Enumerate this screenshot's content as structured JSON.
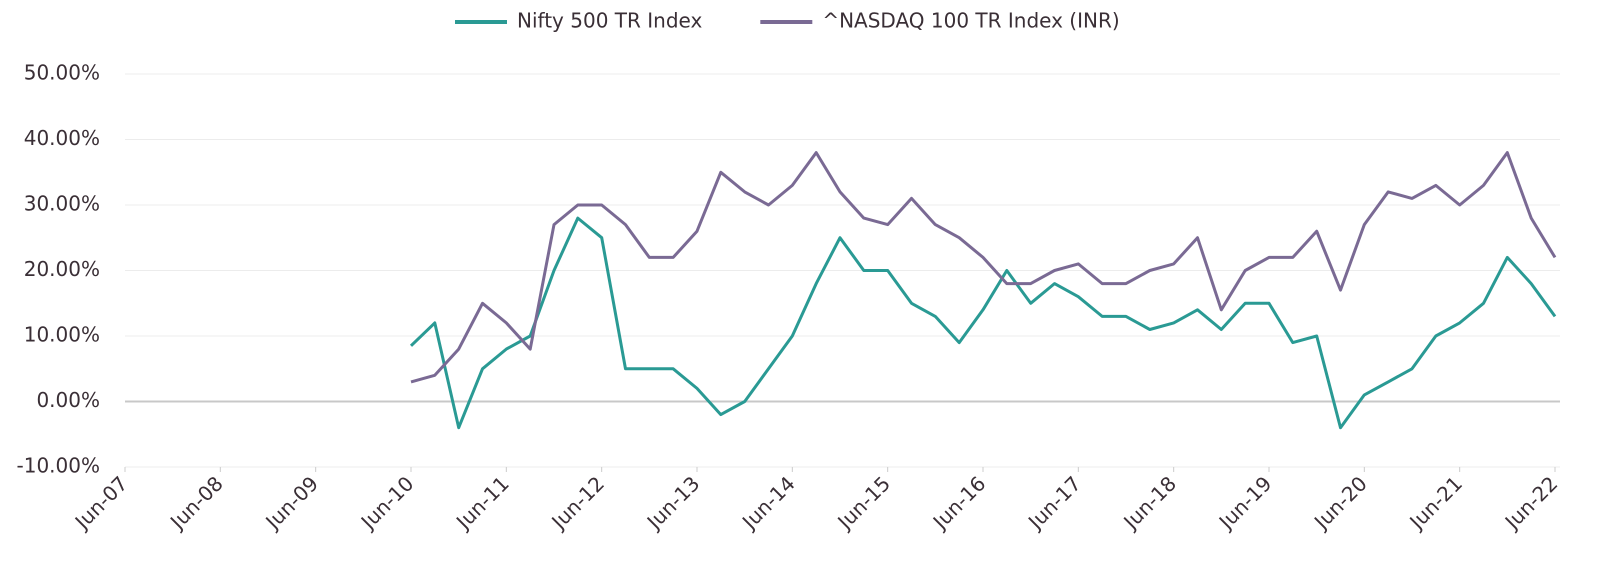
{
  "chart_data": {
    "type": "line",
    "x": [
      "Jun-10",
      "Sep-10",
      "Dec-10",
      "Mar-11",
      "Jun-11",
      "Sep-11",
      "Dec-11",
      "Mar-12",
      "Jun-12",
      "Sep-12",
      "Dec-12",
      "Mar-13",
      "Jun-13",
      "Sep-13",
      "Dec-13",
      "Mar-14",
      "Jun-14",
      "Sep-14",
      "Dec-14",
      "Mar-15",
      "Jun-15",
      "Sep-15",
      "Dec-15",
      "Mar-16",
      "Jun-16",
      "Sep-16",
      "Dec-16",
      "Mar-17",
      "Jun-17",
      "Sep-17",
      "Dec-17",
      "Mar-18",
      "Jun-18",
      "Sep-18",
      "Dec-18",
      "Mar-19",
      "Jun-19",
      "Sep-19",
      "Dec-19",
      "Mar-20",
      "Jun-20",
      "Sep-20",
      "Dec-20",
      "Mar-21",
      "Jun-21",
      "Sep-21",
      "Dec-21",
      "Mar-22",
      "Jun-22"
    ],
    "series": [
      {
        "name": "Nifty 500 TR Index",
        "color": "#2a9a94",
        "values": [
          8.5,
          12,
          -4,
          5,
          8,
          10,
          20,
          28,
          25,
          5,
          5,
          5,
          2,
          -2,
          0,
          5,
          10,
          18,
          25,
          20,
          20,
          15,
          13,
          9,
          14,
          20,
          15,
          18,
          16,
          13,
          13,
          11,
          12,
          14,
          11,
          15,
          15,
          9,
          10,
          -4,
          1,
          3,
          5,
          10,
          12,
          15,
          22,
          18,
          13
        ]
      },
      {
        "name": "^NASDAQ 100 TR Index (INR)",
        "color": "#7a6a94",
        "values": [
          3,
          4,
          8,
          15,
          12,
          8,
          27,
          30,
          30,
          27,
          22,
          22,
          26,
          35,
          32,
          30,
          33,
          38,
          32,
          28,
          27,
          31,
          27,
          25,
          22,
          18,
          18,
          20,
          21,
          18,
          18,
          20,
          21,
          25,
          14,
          20,
          22,
          22,
          26,
          17,
          27,
          32,
          31,
          33,
          30,
          33,
          38,
          28,
          22
        ]
      }
    ],
    "xlim": [
      "Jun-07",
      "Jun-22"
    ],
    "xticks": [
      "Jun-07",
      "Jun-08",
      "Jun-09",
      "Jun-10",
      "Jun-11",
      "Jun-12",
      "Jun-13",
      "Jun-14",
      "Jun-15",
      "Jun-16",
      "Jun-17",
      "Jun-18",
      "Jun-19",
      "Jun-20",
      "Jun-21",
      "Jun-22"
    ],
    "ylim": [
      -10,
      50
    ],
    "yticks": [
      {
        "value": -10,
        "label": "-10.00%"
      },
      {
        "value": 0,
        "label": "0.00%"
      },
      {
        "value": 10,
        "label": "10.00%"
      },
      {
        "value": 20,
        "label": "20.00%"
      },
      {
        "value": 30,
        "label": "30.00%"
      },
      {
        "value": 40,
        "label": "40.00%"
      },
      {
        "value": 50,
        "label": "50.00%"
      }
    ],
    "grid": true,
    "legend": "top"
  }
}
